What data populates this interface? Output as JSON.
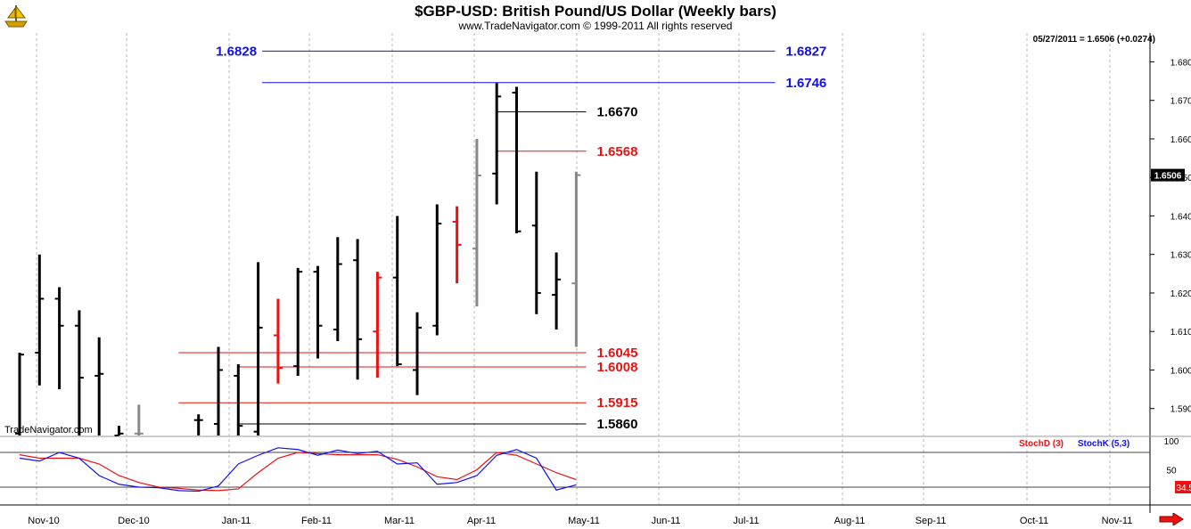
{
  "header": {
    "title": "$GBP-USD:  British Pound/US Dollar  (Weekly bars)",
    "copyright": "www.TradeNavigator.com © 1999-2011 All rights reserved",
    "last_quote": "05/27/2011 = 1.6506 (+0.0274)",
    "watermark": "TradeNavigator.com",
    "logo_icon": "trade-navigator-ship-logo-icon",
    "scroll_icon": "scroll-right-arrow-icon"
  },
  "chart_data": [
    {
      "type": "ohlc",
      "title": "$GBP-USD:  British Pound/US Dollar  (Weekly bars)",
      "ylim": [
        1.583,
        1.6875
      ],
      "y_ticks": [
        "1.5900",
        "1.6000",
        "1.6100",
        "1.6200",
        "1.6300",
        "1.6400",
        "1.6500",
        "1.6600",
        "1.6700",
        "1.6800"
      ],
      "x_tick_labels": [
        "Nov-10",
        "Dec-10",
        "Jan-11",
        "Feb-11",
        "Mar-11",
        "Apr-11",
        "May-11",
        "Jun-11",
        "Jul-11",
        "Aug-11",
        "Sep-11",
        "Oct-11",
        "Nov-11"
      ],
      "last_price_label": "1.6506",
      "last_price_value": 1.6506,
      "colors": {
        "up": "#000000",
        "down": "#ee1111",
        "neutral": "#888888",
        "blue": "#1010ee",
        "red": "#ee0000",
        "black": "#000000"
      },
      "bars": [
        {
          "x": 0,
          "o": 1.5835,
          "h": 1.6045,
          "l": 1.583,
          "c": 1.604,
          "color": "black"
        },
        {
          "x": 1,
          "o": 1.6045,
          "h": 1.63,
          "l": 1.596,
          "c": 1.6185,
          "color": "black"
        },
        {
          "x": 2,
          "o": 1.6185,
          "h": 1.6215,
          "l": 1.595,
          "c": 1.6115,
          "color": "black"
        },
        {
          "x": 3,
          "o": 1.6115,
          "h": 1.6155,
          "l": 1.583,
          "c": 1.598,
          "color": "black"
        },
        {
          "x": 4,
          "o": 1.5985,
          "h": 1.6085,
          "l": 1.583,
          "c": 1.599,
          "color": "black"
        },
        {
          "x": 5,
          "o": 1.583,
          "h": 1.5855,
          "l": 1.583,
          "c": 1.5835,
          "color": "black"
        },
        {
          "x": 6,
          "o": 1.5835,
          "h": 1.591,
          "l": 1.583,
          "c": 1.5835,
          "color": "gray"
        },
        {
          "x": 9,
          "o": 1.587,
          "h": 1.5885,
          "l": 1.583,
          "c": 1.587,
          "color": "black"
        },
        {
          "x": 10,
          "o": 1.586,
          "h": 1.606,
          "l": 1.583,
          "c": 1.6,
          "color": "black"
        },
        {
          "x": 11,
          "o": 1.5985,
          "h": 1.6015,
          "l": 1.583,
          "c": 1.5855,
          "color": "black"
        },
        {
          "x": 12,
          "o": 1.584,
          "h": 1.628,
          "l": 1.583,
          "c": 1.611,
          "color": "black"
        },
        {
          "x": 13,
          "o": 1.609,
          "h": 1.6185,
          "l": 1.5965,
          "c": 1.6005,
          "color": "red"
        },
        {
          "x": 14,
          "o": 1.601,
          "h": 1.6265,
          "l": 1.5985,
          "c": 1.6255,
          "color": "black"
        },
        {
          "x": 15,
          "o": 1.6255,
          "h": 1.627,
          "l": 1.603,
          "c": 1.6115,
          "color": "black"
        },
        {
          "x": 16,
          "o": 1.6105,
          "h": 1.6345,
          "l": 1.6075,
          "c": 1.6275,
          "color": "black"
        },
        {
          "x": 17,
          "o": 1.6285,
          "h": 1.634,
          "l": 1.5975,
          "c": 1.608,
          "color": "black"
        },
        {
          "x": 18,
          "o": 1.61,
          "h": 1.6255,
          "l": 1.598,
          "c": 1.624,
          "color": "red"
        },
        {
          "x": 19,
          "o": 1.624,
          "h": 1.64,
          "l": 1.601,
          "c": 1.6015,
          "color": "black"
        },
        {
          "x": 20,
          "o": 1.6,
          "h": 1.615,
          "l": 1.5935,
          "c": 1.611,
          "color": "black"
        },
        {
          "x": 21,
          "o": 1.6115,
          "h": 1.643,
          "l": 1.609,
          "c": 1.638,
          "color": "black"
        },
        {
          "x": 22,
          "o": 1.6385,
          "h": 1.6425,
          "l": 1.6225,
          "c": 1.6325,
          "color": "red"
        },
        {
          "x": 23,
          "o": 1.6315,
          "h": 1.66,
          "l": 1.6165,
          "c": 1.6505,
          "color": "gray"
        },
        {
          "x": 24,
          "o": 1.651,
          "h": 1.6745,
          "l": 1.643,
          "c": 1.671,
          "color": "black"
        },
        {
          "x": 25,
          "o": 1.672,
          "h": 1.6735,
          "l": 1.6355,
          "c": 1.636,
          "color": "black"
        },
        {
          "x": 26,
          "o": 1.6375,
          "h": 1.6515,
          "l": 1.6145,
          "c": 1.62,
          "color": "black"
        },
        {
          "x": 27,
          "o": 1.6195,
          "h": 1.6305,
          "l": 1.6105,
          "c": 1.6235,
          "color": "black"
        },
        {
          "x": 28,
          "o": 1.6225,
          "h": 1.6515,
          "l": 1.606,
          "c": 1.6506,
          "color": "gray"
        }
      ],
      "levels": [
        {
          "label": "1.6828",
          "label_side": "left",
          "value": 1.6828,
          "x1": 12.2,
          "x2": 38,
          "color": "blue",
          "right_label": "1.6827"
        },
        {
          "label": "1.6746",
          "label_side": "right",
          "value": 1.6746,
          "x1": 12.2,
          "x2": 38,
          "color": "blue"
        },
        {
          "label": "1.6670",
          "label_side": "right",
          "value": 1.667,
          "x1": 24,
          "x2": 28.5,
          "color": "black"
        },
        {
          "label": "1.6568",
          "label_side": "right",
          "value": 1.6568,
          "x1": 24,
          "x2": 28.5,
          "color": "red"
        },
        {
          "label": "1.6045",
          "label_side": "right",
          "value": 1.6045,
          "x1": 8,
          "x2": 28.5,
          "color": "red"
        },
        {
          "label": "1.6008",
          "label_side": "right",
          "value": 1.6008,
          "x1": 11,
          "x2": 28.5,
          "color": "red"
        },
        {
          "label": "1.5915",
          "label_side": "right",
          "value": 1.5915,
          "x1": 8,
          "x2": 28.5,
          "color": "red"
        },
        {
          "label": "1.5860",
          "label_side": "right",
          "value": 1.586,
          "x1": 11,
          "x2": 28.5,
          "color": "black"
        }
      ]
    },
    {
      "type": "line",
      "title": "",
      "ylim": [
        0,
        100
      ],
      "y_ticks": [
        "100",
        "50"
      ],
      "reference_lines": [
        80,
        20
      ],
      "last_value_label": "34.51",
      "series": [
        {
          "name": "StochD (3)",
          "color": "#ee1111",
          "x": [
            0,
            1,
            2,
            3,
            4,
            5,
            6,
            7,
            8,
            9,
            10,
            11,
            12,
            13,
            14,
            15,
            16,
            17,
            18,
            19,
            20,
            21,
            22,
            23,
            24,
            25,
            26,
            27,
            28
          ],
          "values": [
            76,
            70,
            70,
            70,
            60,
            40,
            28,
            20,
            18,
            15,
            14,
            17,
            45,
            70,
            80,
            78,
            76,
            76,
            76,
            68,
            55,
            38,
            33,
            50,
            80,
            75,
            60,
            45,
            33
          ]
        },
        {
          "name": "StochK (5,3)",
          "color": "#1111ee",
          "x": [
            0,
            1,
            2,
            3,
            4,
            5,
            6,
            7,
            8,
            9,
            10,
            11,
            12,
            13,
            14,
            15,
            16,
            17,
            18,
            19,
            20,
            21,
            22,
            23,
            24,
            25,
            26,
            27,
            28
          ],
          "values": [
            70,
            65,
            80,
            70,
            40,
            25,
            20,
            19,
            14,
            13,
            22,
            60,
            75,
            88,
            85,
            75,
            84,
            78,
            82,
            60,
            62,
            25,
            28,
            40,
            75,
            85,
            70,
            15,
            24
          ]
        }
      ]
    }
  ],
  "x_axis_labels": [
    "Nov-10",
    "Dec-10",
    "Jan-11",
    "Feb-11",
    "Mar-11",
    "Apr-11",
    "May-11",
    "Jun-11",
    "Jul-11",
    "Aug-11",
    "Sep-11",
    "Oct-11",
    "Nov-11"
  ]
}
